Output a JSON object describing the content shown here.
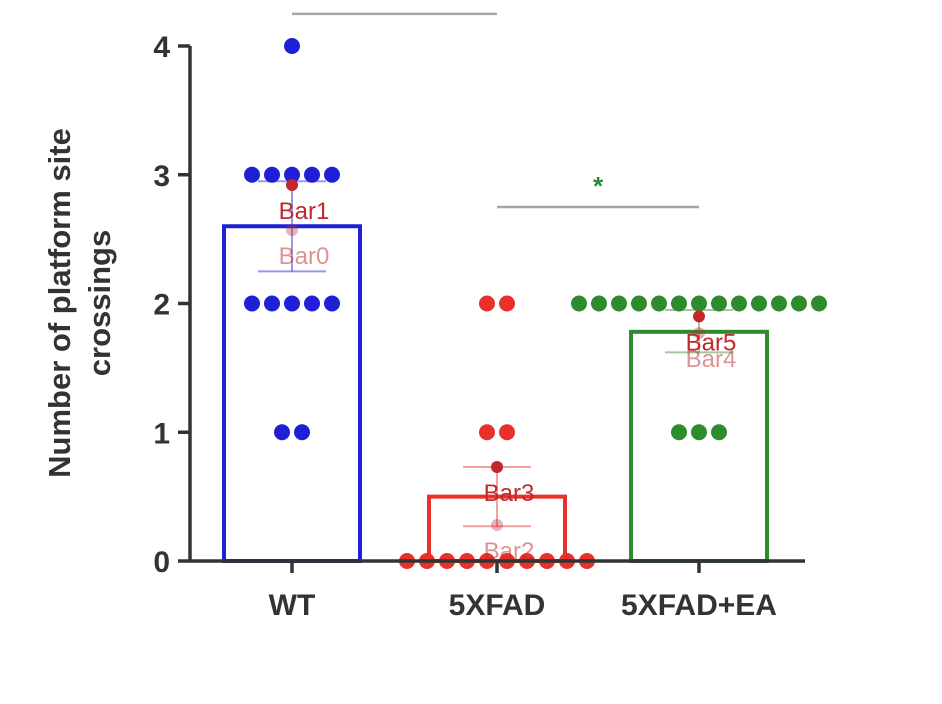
{
  "chart_data": {
    "type": "bar",
    "ylabel_lines": [
      "Number of platform site",
      "crossings"
    ],
    "categories": [
      "WT",
      "5XFAD",
      "5XFAD+EA"
    ],
    "ylim": [
      0,
      4
    ],
    "yticks": [
      "0",
      "1",
      "2",
      "3",
      "4"
    ],
    "grid": false,
    "colors": {
      "WT": "#1f1fd6",
      "5XFAD": "#e8312a",
      "5XFAD+EA": "#2e8b2e",
      "axis": "#333333",
      "significance_line": "#a6a6a6",
      "annotation": "#c0282d"
    },
    "groups": [
      {
        "name": "WT",
        "mean": 2.6,
        "error": [
          2.25,
          2.95
        ],
        "points": [
          4,
          3,
          3,
          3,
          3,
          3,
          2,
          2,
          2,
          2,
          2,
          1,
          1
        ]
      },
      {
        "name": "5XFAD",
        "mean": 0.5,
        "error": [
          0.27,
          0.73
        ],
        "points": [
          2,
          2,
          1,
          1,
          0,
          0,
          0,
          0,
          0,
          0,
          0,
          0,
          0,
          0
        ]
      },
      {
        "name": "5XFAD+EA",
        "mean": 1.78,
        "error": [
          1.62,
          1.95
        ],
        "points": [
          2,
          2,
          2,
          2,
          2,
          2,
          2,
          2,
          2,
          2,
          2,
          2,
          2,
          1,
          1,
          1
        ]
      }
    ],
    "significance": [
      {
        "from": "WT",
        "to": "5XFAD",
        "label": "*",
        "y": 4.25,
        "color": "#e8312a"
      },
      {
        "from": "5XFAD",
        "to": "5XFAD+EA",
        "label": "*",
        "y": 2.75,
        "color": "#2e8b2e"
      }
    ],
    "annotations": [
      {
        "label": "Bar0",
        "category": "WT",
        "value": 2.57
      },
      {
        "label": "Bar1",
        "category": "WT",
        "value": 2.92
      },
      {
        "label": "Bar2",
        "category": "5XFAD",
        "value": 0.28
      },
      {
        "label": "Bar3",
        "category": "5XFAD",
        "value": 0.73
      },
      {
        "label": "Bar4",
        "category": "5XFAD+EA",
        "value": 1.77
      },
      {
        "label": "Bar5",
        "category": "5XFAD+EA",
        "value": 1.9
      }
    ]
  }
}
